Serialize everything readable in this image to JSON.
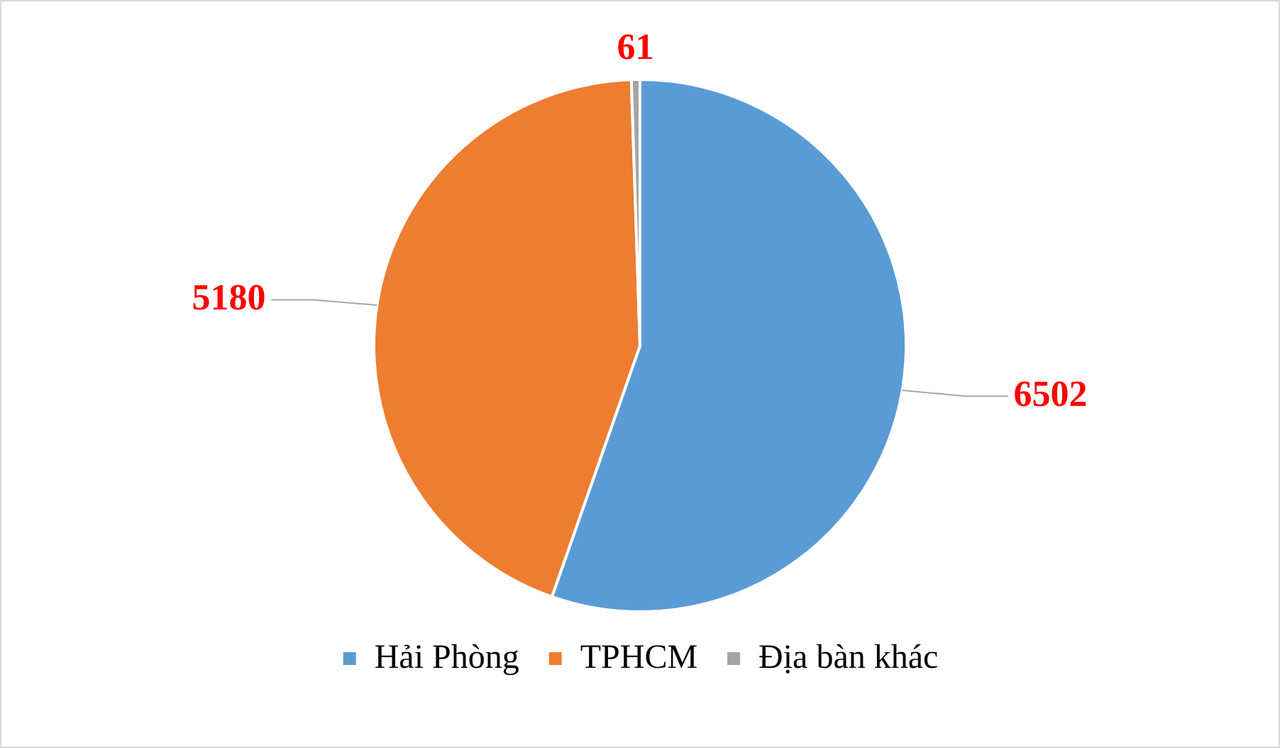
{
  "chart_data": {
    "type": "pie",
    "categories": [
      "Hải Phòng",
      "TPHCM",
      "Địa bàn khác"
    ],
    "values": [
      6502,
      5180,
      61
    ],
    "colors": [
      "#5b9bd5",
      "#ed7d31",
      "#a5a5a5"
    ],
    "data_labels": true,
    "legend": "bottom"
  }
}
